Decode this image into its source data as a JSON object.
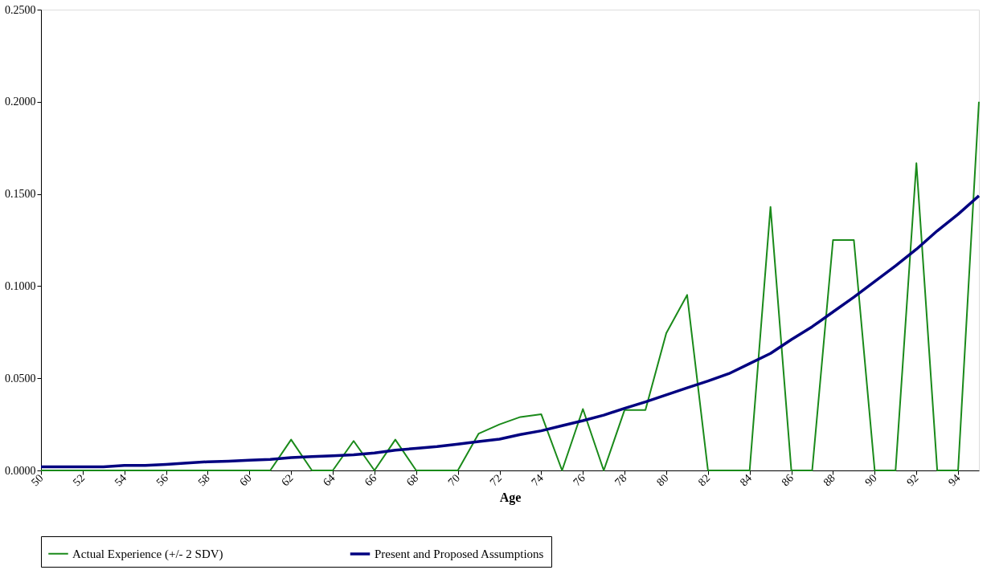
{
  "chart_data": {
    "type": "line",
    "xlabel": "Age",
    "categories": [
      "50",
      null,
      "52",
      null,
      "54",
      null,
      "56",
      null,
      "58",
      null,
      "60",
      null,
      "62",
      null,
      "64",
      null,
      "66",
      null,
      "68",
      null,
      "70",
      null,
      "72",
      null,
      "74",
      null,
      "76",
      null,
      "78",
      null,
      "80",
      null,
      "82",
      null,
      "84",
      null,
      "86",
      null,
      "88",
      null,
      "90",
      null,
      "92",
      null,
      "94",
      null
    ],
    "series": [
      {
        "name": "Actual Experience (+/- 2 SDV)",
        "color": "#1a8a1a",
        "values": [
          0,
          0,
          0,
          0,
          0,
          0,
          0,
          0,
          0,
          0,
          0,
          0,
          0.0167,
          0,
          0,
          0.016,
          0,
          0.0167,
          0,
          0,
          0,
          0.02,
          0.025,
          0.029,
          0.0305,
          0,
          0.0333,
          0,
          0.0328,
          0.0328,
          0.0745,
          0.0952,
          0,
          0,
          0,
          0.143,
          0,
          0,
          0.125,
          0.125,
          0,
          0,
          0.1667,
          0,
          0,
          0.2
        ]
      },
      {
        "name": "Present and Proposed Assumptions",
        "color": "#000080",
        "values": [
          0.002,
          0.002,
          0.002,
          0.002,
          0.0027,
          0.0027,
          0.0033,
          0.004,
          0.0047,
          0.005,
          0.0055,
          0.006,
          0.007,
          0.0075,
          0.008,
          0.0085,
          0.0095,
          0.011,
          0.012,
          0.013,
          0.0143,
          0.0157,
          0.017,
          0.0195,
          0.0215,
          0.0243,
          0.027,
          0.03,
          0.0337,
          0.0372,
          0.041,
          0.0448,
          0.0485,
          0.0525,
          0.058,
          0.0635,
          0.071,
          0.078,
          0.086,
          0.094,
          0.1025,
          0.111,
          0.12,
          0.13,
          0.139,
          0.149
        ]
      }
    ],
    "ylim": [
      0,
      0.25
    ],
    "yticks": [
      {
        "value": 0,
        "label": "0.0000"
      },
      {
        "value": 0.05,
        "label": "0.0500"
      },
      {
        "value": 0.1,
        "label": "0.1000"
      },
      {
        "value": 0.15,
        "label": "0.1500"
      },
      {
        "value": 0.2,
        "label": "0.2000"
      },
      {
        "value": 0.25,
        "label": "0.2500"
      }
    ],
    "grid": false,
    "legend": "bottom",
    "marker": "none",
    "line_style": "solid"
  }
}
